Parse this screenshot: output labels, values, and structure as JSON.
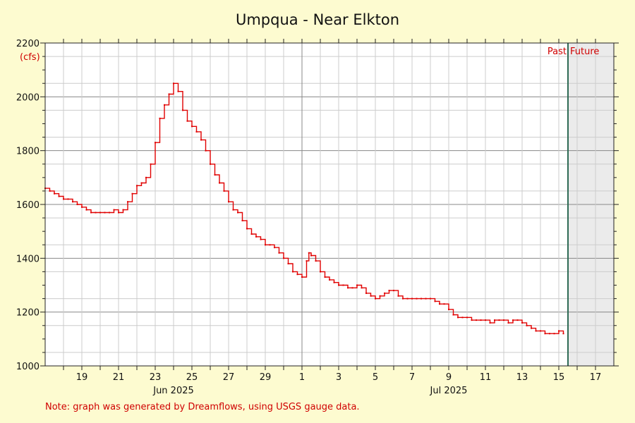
{
  "chart_data": {
    "type": "line",
    "title": "Umpqua - Near Elkton",
    "ylabel_unit": "(cfs)",
    "ylim": [
      1000,
      2200
    ],
    "y_ticks": [
      1000,
      1200,
      1400,
      1600,
      1800,
      2000,
      2200
    ],
    "x_start": "2025-06-17",
    "x_end": "2025-07-18",
    "x_tick_labels": [
      "19",
      "21",
      "23",
      "25",
      "27",
      "29",
      "1",
      "3",
      "5",
      "7",
      "9",
      "11",
      "13",
      "15",
      "17"
    ],
    "month_labels": [
      "Jun 2025",
      "Jul 2025"
    ],
    "past_label": "Past",
    "future_label": "Future",
    "now": "2025-07-15 12:00",
    "grid": true,
    "line_color": "#e00000",
    "future_shade_color": "#ebebeb",
    "now_line_color": "#2e6b55",
    "series": [
      {
        "name": "",
        "points": [
          [
            "2025-06-17 00:00",
            1660
          ],
          [
            "2025-06-17 06:00",
            1650
          ],
          [
            "2025-06-17 12:00",
            1640
          ],
          [
            "2025-06-17 18:00",
            1630
          ],
          [
            "2025-06-18 00:00",
            1620
          ],
          [
            "2025-06-18 06:00",
            1620
          ],
          [
            "2025-06-18 12:00",
            1610
          ],
          [
            "2025-06-18 18:00",
            1600
          ],
          [
            "2025-06-19 00:00",
            1590
          ],
          [
            "2025-06-19 06:00",
            1580
          ],
          [
            "2025-06-19 12:00",
            1570
          ],
          [
            "2025-06-19 18:00",
            1570
          ],
          [
            "2025-06-20 00:00",
            1570
          ],
          [
            "2025-06-20 06:00",
            1570
          ],
          [
            "2025-06-20 12:00",
            1570
          ],
          [
            "2025-06-20 18:00",
            1580
          ],
          [
            "2025-06-21 00:00",
            1570
          ],
          [
            "2025-06-21 06:00",
            1580
          ],
          [
            "2025-06-21 12:00",
            1610
          ],
          [
            "2025-06-21 18:00",
            1640
          ],
          [
            "2025-06-22 00:00",
            1670
          ],
          [
            "2025-06-22 06:00",
            1680
          ],
          [
            "2025-06-22 12:00",
            1700
          ],
          [
            "2025-06-22 18:00",
            1750
          ],
          [
            "2025-06-23 00:00",
            1830
          ],
          [
            "2025-06-23 06:00",
            1920
          ],
          [
            "2025-06-23 12:00",
            1970
          ],
          [
            "2025-06-23 18:00",
            2010
          ],
          [
            "2025-06-24 00:00",
            2050
          ],
          [
            "2025-06-24 06:00",
            2020
          ],
          [
            "2025-06-24 12:00",
            1950
          ],
          [
            "2025-06-24 18:00",
            1910
          ],
          [
            "2025-06-25 00:00",
            1890
          ],
          [
            "2025-06-25 06:00",
            1870
          ],
          [
            "2025-06-25 12:00",
            1840
          ],
          [
            "2025-06-25 18:00",
            1800
          ],
          [
            "2025-06-26 00:00",
            1750
          ],
          [
            "2025-06-26 06:00",
            1710
          ],
          [
            "2025-06-26 12:00",
            1680
          ],
          [
            "2025-06-26 18:00",
            1650
          ],
          [
            "2025-06-27 00:00",
            1610
          ],
          [
            "2025-06-27 06:00",
            1580
          ],
          [
            "2025-06-27 12:00",
            1570
          ],
          [
            "2025-06-27 18:00",
            1540
          ],
          [
            "2025-06-28 00:00",
            1510
          ],
          [
            "2025-06-28 06:00",
            1490
          ],
          [
            "2025-06-28 12:00",
            1480
          ],
          [
            "2025-06-28 18:00",
            1470
          ],
          [
            "2025-06-29 00:00",
            1450
          ],
          [
            "2025-06-29 06:00",
            1450
          ],
          [
            "2025-06-29 12:00",
            1440
          ],
          [
            "2025-06-29 18:00",
            1420
          ],
          [
            "2025-06-30 00:00",
            1400
          ],
          [
            "2025-06-30 06:00",
            1380
          ],
          [
            "2025-06-30 12:00",
            1350
          ],
          [
            "2025-06-30 18:00",
            1340
          ],
          [
            "2025-07-01 00:00",
            1330
          ],
          [
            "2025-07-01 06:00",
            1390
          ],
          [
            "2025-07-01 09:00",
            1420
          ],
          [
            "2025-07-01 12:00",
            1410
          ],
          [
            "2025-07-01 18:00",
            1390
          ],
          [
            "2025-07-02 00:00",
            1350
          ],
          [
            "2025-07-02 06:00",
            1330
          ],
          [
            "2025-07-02 12:00",
            1320
          ],
          [
            "2025-07-02 18:00",
            1310
          ],
          [
            "2025-07-03 00:00",
            1300
          ],
          [
            "2025-07-03 06:00",
            1300
          ],
          [
            "2025-07-03 12:00",
            1290
          ],
          [
            "2025-07-03 18:00",
            1290
          ],
          [
            "2025-07-04 00:00",
            1300
          ],
          [
            "2025-07-04 06:00",
            1290
          ],
          [
            "2025-07-04 12:00",
            1270
          ],
          [
            "2025-07-04 18:00",
            1260
          ],
          [
            "2025-07-05 00:00",
            1250
          ],
          [
            "2025-07-05 06:00",
            1260
          ],
          [
            "2025-07-05 12:00",
            1270
          ],
          [
            "2025-07-05 18:00",
            1280
          ],
          [
            "2025-07-06 00:00",
            1280
          ],
          [
            "2025-07-06 06:00",
            1260
          ],
          [
            "2025-07-06 12:00",
            1250
          ],
          [
            "2025-07-06 18:00",
            1250
          ],
          [
            "2025-07-07 00:00",
            1250
          ],
          [
            "2025-07-07 06:00",
            1250
          ],
          [
            "2025-07-07 12:00",
            1250
          ],
          [
            "2025-07-07 18:00",
            1250
          ],
          [
            "2025-07-08 00:00",
            1250
          ],
          [
            "2025-07-08 06:00",
            1240
          ],
          [
            "2025-07-08 12:00",
            1230
          ],
          [
            "2025-07-08 18:00",
            1230
          ],
          [
            "2025-07-09 00:00",
            1210
          ],
          [
            "2025-07-09 06:00",
            1190
          ],
          [
            "2025-07-09 12:00",
            1180
          ],
          [
            "2025-07-09 18:00",
            1180
          ],
          [
            "2025-07-10 00:00",
            1180
          ],
          [
            "2025-07-10 06:00",
            1170
          ],
          [
            "2025-07-10 12:00",
            1170
          ],
          [
            "2025-07-10 18:00",
            1170
          ],
          [
            "2025-07-11 00:00",
            1170
          ],
          [
            "2025-07-11 06:00",
            1160
          ],
          [
            "2025-07-11 12:00",
            1170
          ],
          [
            "2025-07-11 18:00",
            1170
          ],
          [
            "2025-07-12 00:00",
            1170
          ],
          [
            "2025-07-12 06:00",
            1160
          ],
          [
            "2025-07-12 12:00",
            1170
          ],
          [
            "2025-07-12 18:00",
            1170
          ],
          [
            "2025-07-13 00:00",
            1160
          ],
          [
            "2025-07-13 06:00",
            1150
          ],
          [
            "2025-07-13 12:00",
            1140
          ],
          [
            "2025-07-13 18:00",
            1130
          ],
          [
            "2025-07-14 00:00",
            1130
          ],
          [
            "2025-07-14 06:00",
            1120
          ],
          [
            "2025-07-14 12:00",
            1120
          ],
          [
            "2025-07-14 18:00",
            1120
          ],
          [
            "2025-07-15 00:00",
            1130
          ],
          [
            "2025-07-15 06:00",
            1120
          ]
        ]
      }
    ]
  },
  "note": "Note: graph was generated by Dreamflows, using USGS gauge data."
}
